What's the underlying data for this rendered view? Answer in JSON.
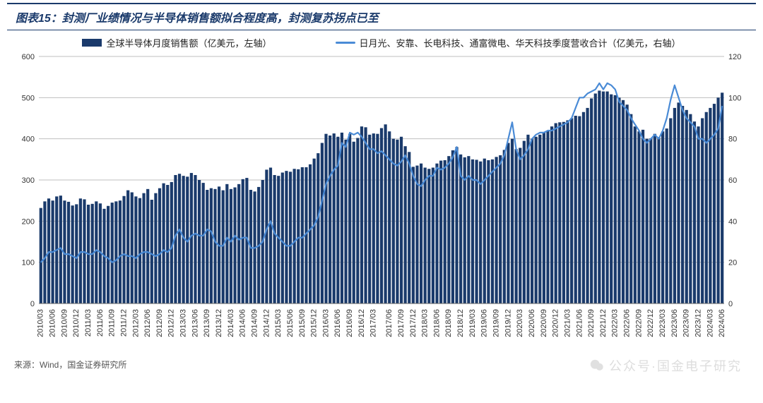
{
  "title": "图表15：封测厂业绩情况与半导体销售额拟合程度高，封测复苏拐点已至",
  "legend": {
    "bar": "全球半导体月度销售额（亿美元，左轴）",
    "line": "日月光、安靠、长电科技、通富微电、华天科技季度营收合计（亿美元，右轴）"
  },
  "source": "来源：Wind，国金证券研究所",
  "watermark": "公众号·国金电子研究",
  "chart": {
    "type": "bar+line",
    "y_left": {
      "min": 0,
      "max": 600,
      "step": 100
    },
    "y_right": {
      "min": 0,
      "max": 120,
      "step": 20
    },
    "colors": {
      "bar": "#1a3a6b",
      "line": "#4a8bd6",
      "grid": "#bfbfbf",
      "axis": "#666",
      "tick_text": "#333",
      "bg": "#ffffff"
    },
    "fontsize": {
      "tick": 11,
      "xlabel": 11
    },
    "bar_gap_ratio": 0.25,
    "line_width": 2.2,
    "x_labels": [
      "2010/03",
      "2010/06",
      "2010/09",
      "2010/12",
      "2011/03",
      "2011/06",
      "2011/09",
      "2011/12",
      "2012/03",
      "2012/06",
      "2012/09",
      "2012/12",
      "2013/03",
      "2013/06",
      "2013/09",
      "2013/12",
      "2014/03",
      "2014/06",
      "2014/09",
      "2014/12",
      "2015/03",
      "2015/06",
      "2015/09",
      "2015/12",
      "2016/03",
      "2016/06",
      "2016/09",
      "2016/12",
      "2017/03",
      "2017/06",
      "2017/09",
      "2017/12",
      "2018/03",
      "2018/06",
      "2018/09",
      "2018/12",
      "2019/03",
      "2019/06",
      "2019/09",
      "2019/12",
      "2020/03",
      "2020/06",
      "2020/09",
      "2020/12",
      "2021/03",
      "2021/06",
      "2021/09",
      "2021/12",
      "2022/03",
      "2022/06",
      "2022/09",
      "2022/12",
      "2023/03",
      "2023/06",
      "2023/09",
      "2023/12",
      "2024/03",
      "2024/06"
    ],
    "bar_values": [
      232,
      248,
      255,
      250,
      260,
      262,
      250,
      247,
      238,
      241,
      255,
      253,
      240,
      242,
      248,
      243,
      230,
      237,
      245,
      248,
      250,
      261,
      275,
      270,
      260,
      256,
      268,
      278,
      252,
      268,
      280,
      292,
      288,
      295,
      312,
      315,
      310,
      308,
      317,
      312,
      300,
      293,
      276,
      280,
      278,
      284,
      275,
      290,
      278,
      282,
      290,
      302,
      305,
      276,
      272,
      283,
      300,
      325,
      330,
      312,
      310,
      318,
      322,
      320,
      327,
      326,
      331,
      331,
      338,
      352,
      365,
      390,
      412,
      408,
      413,
      405,
      415,
      398,
      412,
      393,
      402,
      430,
      428,
      410,
      413,
      412,
      426,
      435,
      418,
      400,
      398,
      405,
      382,
      368,
      332,
      335,
      340,
      330,
      327,
      330,
      340,
      347,
      348,
      358,
      372,
      380,
      362,
      355,
      358,
      350,
      349,
      345,
      352,
      348,
      350,
      356,
      360,
      373,
      390,
      400,
      375,
      378,
      395,
      410,
      400,
      405,
      410,
      415,
      420,
      430,
      438,
      440,
      441,
      445,
      450,
      456,
      455,
      465,
      475,
      498,
      510,
      517,
      515,
      515,
      508,
      506,
      500,
      494,
      483,
      460,
      430,
      418,
      422,
      400,
      401,
      412,
      404,
      418,
      425,
      450,
      475,
      488,
      480,
      470,
      460,
      442,
      430,
      450,
      465,
      475,
      485,
      500,
      512
    ],
    "line_values": [
      20,
      22,
      25,
      25,
      26,
      27,
      24,
      24,
      23,
      22,
      25,
      25,
      24,
      24,
      26,
      25,
      23,
      22,
      20,
      21,
      23,
      24,
      23,
      23,
      22,
      24,
      25,
      25,
      24,
      23,
      24,
      26,
      25,
      27,
      33,
      36,
      32,
      30,
      33,
      34,
      33,
      33,
      36,
      35,
      30,
      28,
      28,
      32,
      30,
      33,
      31,
      32,
      32,
      27,
      27,
      28,
      30,
      36,
      40,
      34,
      32,
      30,
      28,
      28,
      30,
      32,
      32,
      34,
      36,
      38,
      42,
      50,
      58,
      62,
      65,
      67,
      78,
      76,
      83,
      82,
      83,
      81,
      78,
      75,
      75,
      73,
      74,
      72,
      70,
      68,
      67,
      69,
      72,
      68,
      62,
      58,
      57,
      60,
      62,
      62,
      66,
      65,
      66,
      68,
      71,
      76,
      62,
      60,
      62,
      60,
      60,
      58,
      60,
      62,
      64,
      66,
      68,
      72,
      80,
      88,
      75,
      70,
      72,
      75,
      80,
      82,
      83,
      83,
      84,
      84,
      85,
      86,
      87,
      88,
      90,
      95,
      100,
      100,
      102,
      103,
      104,
      107,
      104,
      107,
      106,
      104,
      98,
      96,
      94,
      90,
      87,
      84,
      80,
      78,
      80,
      82,
      80,
      84,
      90,
      99,
      106,
      100,
      94,
      90,
      88,
      86,
      80,
      80,
      78,
      80,
      82,
      85,
      96
    ]
  }
}
